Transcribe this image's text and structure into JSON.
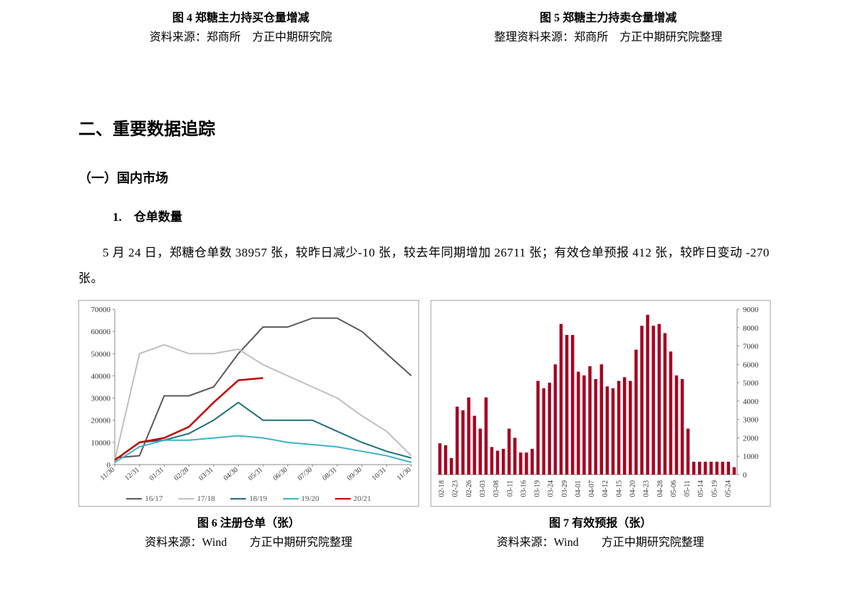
{
  "top": {
    "left": {
      "title": "图 4 郑糖主力持买仓量增减",
      "source": "资料来源：郑商所　方正中期研究院"
    },
    "right": {
      "title": "图 5 郑糖主力持卖仓量增减",
      "source": "整理资料来源：郑商所　方正中期研究院整理"
    }
  },
  "section": "二、重要数据追踪",
  "subsection": "（一）国内市场",
  "item": "1.　仓单数量",
  "paragraph": "5 月 24 日，郑糖仓单数 38957  张，较昨日减少-10  张，较去年同期增加 26711  张；有效仓单预报 412  张，较昨日变动  -270  张。",
  "fig6": {
    "type": "line",
    "ylim": [
      0,
      70000
    ],
    "ytick_step": 10000,
    "x_labels": [
      "11/30",
      "12/31",
      "01/31",
      "02/28",
      "03/31",
      "04/30",
      "05/31",
      "06/30",
      "07/30",
      "08/31",
      "09/30",
      "10/31",
      "11/30"
    ],
    "x_label_fontsize": 10,
    "series": [
      {
        "name": "16/17",
        "color": "#595959",
        "width": 2,
        "points": [
          3000,
          4000,
          31000,
          31000,
          35000,
          50000,
          62000,
          62000,
          66000,
          66000,
          60000,
          50000,
          40000
        ]
      },
      {
        "name": "17/18",
        "color": "#bfbfbf",
        "width": 2,
        "points": [
          2000,
          50000,
          54000,
          50000,
          50000,
          52000,
          45000,
          40000,
          35000,
          30000,
          22000,
          15000,
          4000
        ]
      },
      {
        "name": "18/19",
        "color": "#1f6e7a",
        "width": 2,
        "points": [
          2000,
          10000,
          11000,
          14000,
          20000,
          28000,
          20000,
          20000,
          20000,
          15000,
          10000,
          6000,
          3000
        ]
      },
      {
        "name": "19/20",
        "color": "#3cb2c9",
        "width": 2,
        "points": [
          1000,
          8000,
          11000,
          11000,
          12000,
          13000,
          12000,
          10000,
          9000,
          8000,
          6000,
          4000,
          1000
        ]
      },
      {
        "name": "20/21",
        "color": "#c00000",
        "width": 2.5,
        "points": [
          2000,
          10000,
          12000,
          17000,
          28000,
          38000,
          39000
        ]
      }
    ],
    "background": "#ffffff",
    "caption_title": "图 6 注册仓单（张）",
    "caption_source": "资料来源：Wind　　方正中期研究院整理"
  },
  "fig7": {
    "type": "bar",
    "ylim": [
      0,
      9000
    ],
    "ytick_step": 1000,
    "bar_color": "#a50021",
    "bar_width": 0.55,
    "categories": [
      "02-18",
      "02-23",
      "02-26",
      "03-03",
      "03-08",
      "03-11",
      "03-16",
      "03-19",
      "03-24",
      "03-29",
      "04-01",
      "04-07",
      "04-12",
      "04-15",
      "04-20",
      "04-23",
      "04-28",
      "05-06",
      "05-11",
      "05-14",
      "05-19",
      "05-24"
    ],
    "values_between": [
      1700,
      1600,
      900,
      3700,
      3500,
      4200,
      3200,
      2500,
      4200,
      1500,
      1300,
      1400,
      2500,
      2000,
      1200,
      1200,
      1400,
      5100,
      4700,
      5000,
      6000,
      8200,
      7600,
      7600,
      5600,
      5400,
      5900,
      5200,
      6000,
      4800,
      4700,
      5100,
      5300,
      5100,
      6800,
      8100,
      8700,
      8100,
      8200,
      7700,
      6700,
      5400,
      5200,
      2500,
      700,
      700,
      700,
      700,
      700,
      700,
      700,
      400
    ],
    "x_label_fontsize": 10,
    "background": "#ffffff",
    "caption_title": "图 7 有效预报（张）",
    "caption_source": "资料来源：Wind　　方正中期研究院整理"
  }
}
